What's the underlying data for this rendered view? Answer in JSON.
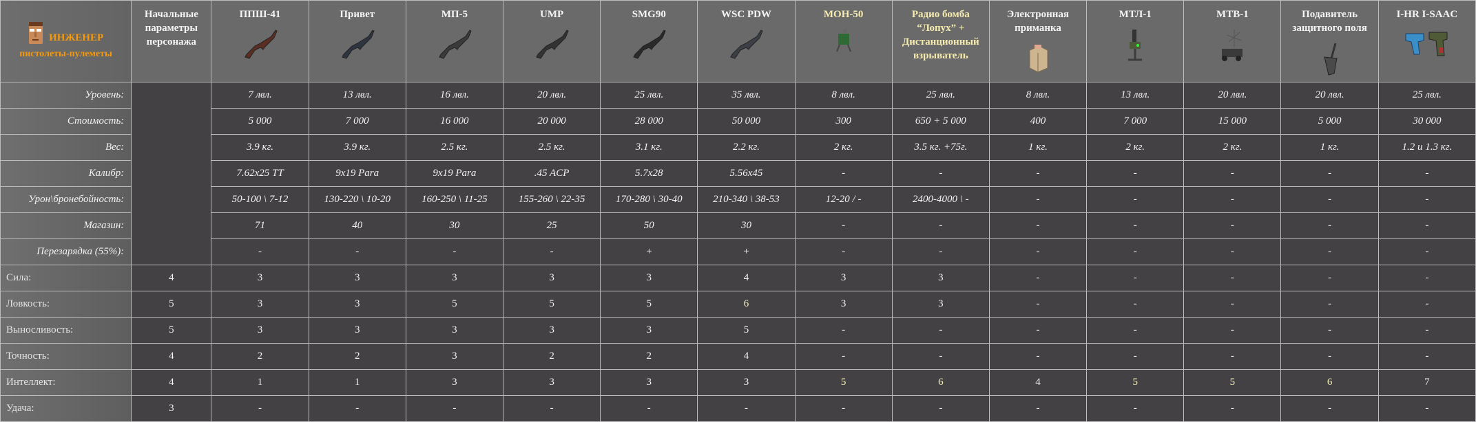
{
  "corner": {
    "title": "ИНЖЕНЕР",
    "subtitle": "пистолеты-пулеметы",
    "icon": "engineer-avatar-icon"
  },
  "initial_header": "Начальные параметры персонажа",
  "columns": [
    {
      "name": "ППШ-41",
      "icon": "ppsh-41-gun-icon",
      "highlight": false
    },
    {
      "name": "Привет",
      "icon": "privet-gun-icon",
      "highlight": false
    },
    {
      "name": "МП-5",
      "icon": "mp5-gun-icon",
      "highlight": false
    },
    {
      "name": "UMP",
      "icon": "ump-gun-icon",
      "highlight": false
    },
    {
      "name": "SMG90",
      "icon": "smg90-gun-icon",
      "highlight": false
    },
    {
      "name": "WSC PDW",
      "icon": "wsc-pdw-gun-icon",
      "highlight": false
    },
    {
      "name": "МОН-50",
      "icon": "mine-icon",
      "highlight": true
    },
    {
      "name": "Радио бомба “Лопух” + Дистанционный взрыватель",
      "icon": "",
      "highlight": true
    },
    {
      "name": "Электронная приманка",
      "icon": "decoy-box-icon",
      "highlight": false
    },
    {
      "name": "МТЛ-1",
      "icon": "turret-mtl-icon",
      "highlight": false
    },
    {
      "name": "МТВ-1",
      "icon": "turret-mtv-icon",
      "highlight": false
    },
    {
      "name": "Подавитель защитного поля",
      "icon": "shovel-icon",
      "highlight": false
    },
    {
      "name": "I-HR I-SAAC",
      "icon": "pistols-icon",
      "highlight": false
    }
  ],
  "rows": [
    {
      "label": "Уровень:",
      "type": "param",
      "values": [
        "7 лвл.",
        "13 лвл.",
        "16 лвл.",
        "20 лвл.",
        "25 лвл.",
        "35 лвл.",
        "8 лвл.",
        "25 лвл.",
        "8 лвл.",
        "13 лвл.",
        "20 лвл.",
        "20 лвл.",
        "25 лвл."
      ]
    },
    {
      "label": "Стоимость:",
      "type": "param",
      "values": [
        "5 000",
        "7 000",
        "16 000",
        "20 000",
        "28 000",
        "50 000",
        "300",
        "650 + 5 000",
        "400",
        "7 000",
        "15 000",
        "5 000",
        "30 000"
      ]
    },
    {
      "label": "Вес:",
      "type": "param",
      "values": [
        "3.9 кг.",
        "3.9 кг.",
        "2.5 кг.",
        "2.5 кг.",
        "3.1 кг.",
        "2.2 кг.",
        "2 кг.",
        "3.5 кг. +75г.",
        "1 кг.",
        "2 кг.",
        "2 кг.",
        "1 кг.",
        "1.2 и 1.3 кг."
      ]
    },
    {
      "label": "Калибр:",
      "type": "param",
      "values": [
        "7.62x25 TT",
        "9x19 Para",
        "9x19 Para",
        ".45 ACP",
        "5.7x28",
        "5.56x45",
        "-",
        "-",
        "-",
        "-",
        "-",
        "-",
        "-"
      ]
    },
    {
      "label": "Урон\\бронебойность:",
      "type": "param",
      "values": [
        "50-100 \\ 7-12",
        "130-220 \\ 10-20",
        "160-250 \\ 11-25",
        "155-260 \\ 22-35",
        "170-280 \\ 30-40",
        "210-340 \\ 38-53",
        "12-20 / -",
        "2400-4000 \\ -",
        "-",
        "-",
        "-",
        "-",
        "-"
      ]
    },
    {
      "label": "Магазин:",
      "type": "param",
      "values": [
        "71",
        "40",
        "30",
        "25",
        "50",
        "30",
        "-",
        "-",
        "-",
        "-",
        "-",
        "-",
        "-"
      ]
    },
    {
      "label": "Перезарядка (55%):",
      "type": "param",
      "values": [
        "-",
        "-",
        "-",
        "-",
        "+",
        "+",
        "-",
        "-",
        "-",
        "-",
        "-",
        "-",
        "-"
      ]
    },
    {
      "label": "Сила:",
      "type": "stat",
      "initial": "4",
      "values": [
        "3",
        "3",
        "3",
        "3",
        "3",
        "4",
        "3",
        "3",
        "-",
        "-",
        "-",
        "-",
        "-"
      ]
    },
    {
      "label": "Ловкость:",
      "type": "stat",
      "initial": "5",
      "values": [
        "3",
        "3",
        "5",
        "5",
        "5",
        "6",
        "3",
        "3",
        "-",
        "-",
        "-",
        "-",
        "-"
      ],
      "highlight": [
        5
      ]
    },
    {
      "label": "Выносливость:",
      "type": "stat",
      "initial": "5",
      "values": [
        "3",
        "3",
        "3",
        "3",
        "3",
        "5",
        "-",
        "-",
        "-",
        "-",
        "-",
        "-",
        "-"
      ]
    },
    {
      "label": "Точность:",
      "type": "stat",
      "initial": "4",
      "values": [
        "2",
        "2",
        "3",
        "2",
        "2",
        "4",
        "-",
        "-",
        "-",
        "-",
        "-",
        "-",
        "-"
      ]
    },
    {
      "label": "Интеллект:",
      "type": "stat",
      "initial": "4",
      "values": [
        "1",
        "1",
        "3",
        "3",
        "3",
        "3",
        "5",
        "6",
        "4",
        "5",
        "5",
        "6",
        "7"
      ],
      "highlight": [
        6,
        7,
        9,
        10,
        11
      ]
    },
    {
      "label": "Удача:",
      "type": "stat",
      "initial": "3",
      "values": [
        "-",
        "-",
        "-",
        "-",
        "-",
        "-",
        "-",
        "-",
        "-",
        "-",
        "-",
        "-",
        "-"
      ]
    }
  ],
  "colors": {
    "accent_orange": "#f59a0c",
    "highlight_yellow": "#f4f0bb",
    "cell_bg": "#434144",
    "header_bg": "#6a6a6a"
  }
}
